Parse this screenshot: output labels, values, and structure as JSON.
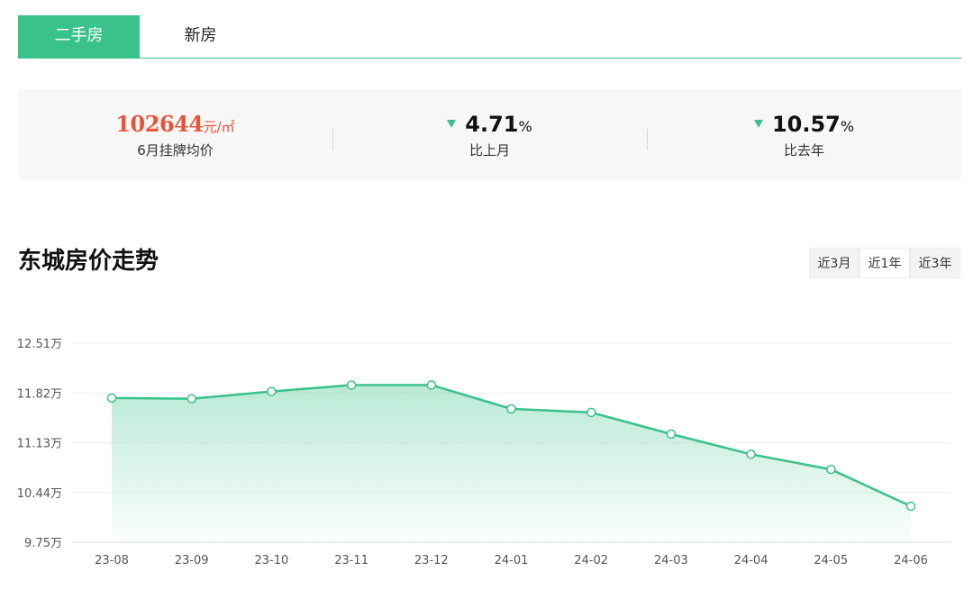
{
  "tabs": [
    {
      "label": "二手房",
      "active": true
    },
    {
      "label": "新房",
      "active": false
    }
  ],
  "stats": {
    "price": {
      "value": "102644",
      "unit": "元/㎡",
      "label": "6月挂牌均价"
    },
    "month": {
      "value": "4.71",
      "unit": "%",
      "label": "比上月",
      "direction": "down"
    },
    "year": {
      "value": "10.57",
      "unit": "%",
      "label": "比去年",
      "direction": "down"
    }
  },
  "title": "东城房价走势",
  "ranges": [
    {
      "label": "近3月",
      "active": false
    },
    {
      "label": "近1年",
      "active": true
    },
    {
      "label": "近3年",
      "active": false
    }
  ],
  "colors": {
    "accent": "#39c28a",
    "price": "#e8543a"
  },
  "chart_data": {
    "type": "area",
    "categories": [
      "23-08",
      "23-09",
      "23-10",
      "23-11",
      "23-12",
      "24-01",
      "24-02",
      "24-03",
      "24-04",
      "24-05",
      "24-06"
    ],
    "values": [
      11.75,
      11.74,
      11.84,
      11.93,
      11.93,
      11.6,
      11.55,
      11.25,
      10.97,
      10.76,
      10.25
    ],
    "yticks": [
      9.75,
      10.44,
      11.13,
      11.82,
      12.51
    ],
    "ytick_labels": [
      "9.75万",
      "10.44万",
      "11.13万",
      "11.82万",
      "12.51万"
    ],
    "ylim": [
      9.75,
      12.51
    ],
    "grid": true,
    "title": "",
    "xlabel": "",
    "ylabel": ""
  }
}
